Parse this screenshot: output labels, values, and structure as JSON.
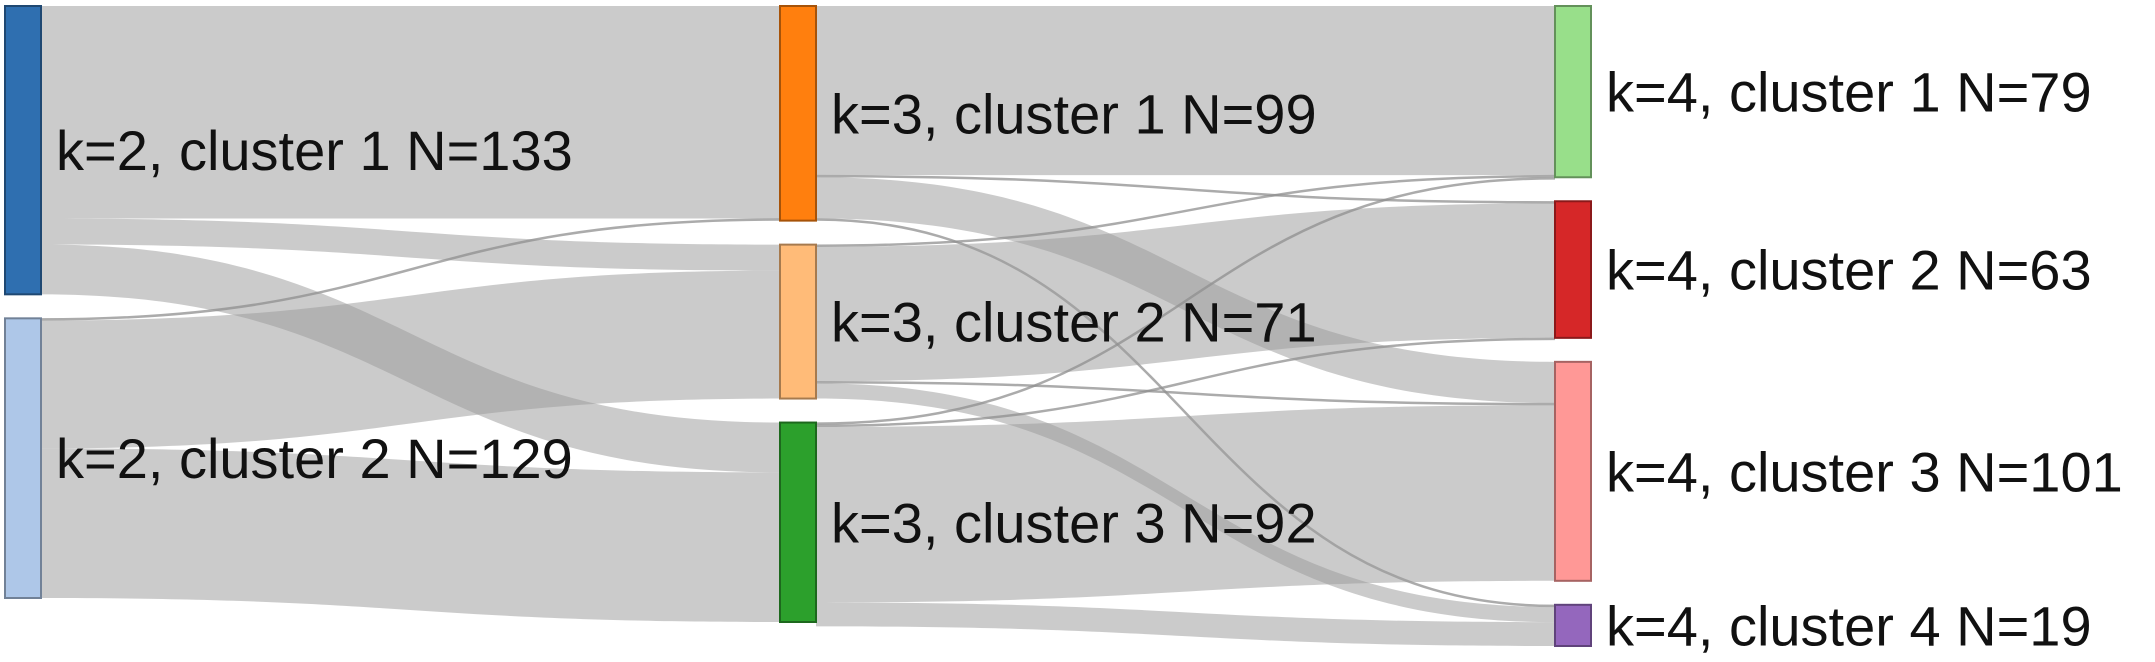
{
  "diagram": {
    "type": "sankey",
    "nodes": [
      {
        "id": "k2c1",
        "label": "k=2, cluster 1 N=133",
        "column": 0,
        "count": 133,
        "color": "#2f6fb0"
      },
      {
        "id": "k2c2",
        "label": "k=2, cluster 2 N=129",
        "column": 0,
        "count": 129,
        "color": "#aec7e8"
      },
      {
        "id": "k3c1",
        "label": "k=3, cluster 1 N=99",
        "column": 1,
        "count": 99,
        "color": "#ff7f0e"
      },
      {
        "id": "k3c2",
        "label": "k=3, cluster 2 N=71",
        "column": 1,
        "count": 71,
        "color": "#ffbb78"
      },
      {
        "id": "k3c3",
        "label": "k=3, cluster 3 N=92",
        "column": 1,
        "count": 92,
        "color": "#2ca02c"
      },
      {
        "id": "k4c1",
        "label": "k=4, cluster 1 N=79",
        "column": 2,
        "count": 79,
        "color": "#98df8a"
      },
      {
        "id": "k4c2",
        "label": "k=4, cluster 2 N=63",
        "column": 2,
        "count": 63,
        "color": "#d62728"
      },
      {
        "id": "k4c3",
        "label": "k=4, cluster 3 N=101",
        "column": 2,
        "count": 101,
        "color": "#ff9896"
      },
      {
        "id": "k4c4",
        "label": "k=4, cluster 4 N=19",
        "column": 2,
        "count": 19,
        "color": "#9467bd"
      }
    ],
    "links": [
      {
        "source": "k2c1",
        "target": "k3c1",
        "value": 98
      },
      {
        "source": "k2c1",
        "target": "k3c2",
        "value": 12
      },
      {
        "source": "k2c1",
        "target": "k3c3",
        "value": 23
      },
      {
        "source": "k2c2",
        "target": "k3c1",
        "value": 1
      },
      {
        "source": "k2c2",
        "target": "k3c2",
        "value": 59
      },
      {
        "source": "k2c2",
        "target": "k3c3",
        "value": 69
      },
      {
        "source": "k3c1",
        "target": "k4c1",
        "value": 78
      },
      {
        "source": "k3c1",
        "target": "k4c2",
        "value": 1
      },
      {
        "source": "k3c1",
        "target": "k4c3",
        "value": 19
      },
      {
        "source": "k3c1",
        "target": "k4c4",
        "value": 1
      },
      {
        "source": "k3c2",
        "target": "k4c1",
        "value": 1
      },
      {
        "source": "k3c2",
        "target": "k4c2",
        "value": 62
      },
      {
        "source": "k3c2",
        "target": "k4c3",
        "value": 1
      },
      {
        "source": "k3c2",
        "target": "k4c4",
        "value": 7
      },
      {
        "source": "k3c3",
        "target": "k4c1",
        "value": 1
      },
      {
        "source": "k3c3",
        "target": "k4c2",
        "value": 1
      },
      {
        "source": "k3c3",
        "target": "k4c3",
        "value": 81
      },
      {
        "source": "k3c3",
        "target": "k4c4",
        "value": 11
      }
    ]
  }
}
